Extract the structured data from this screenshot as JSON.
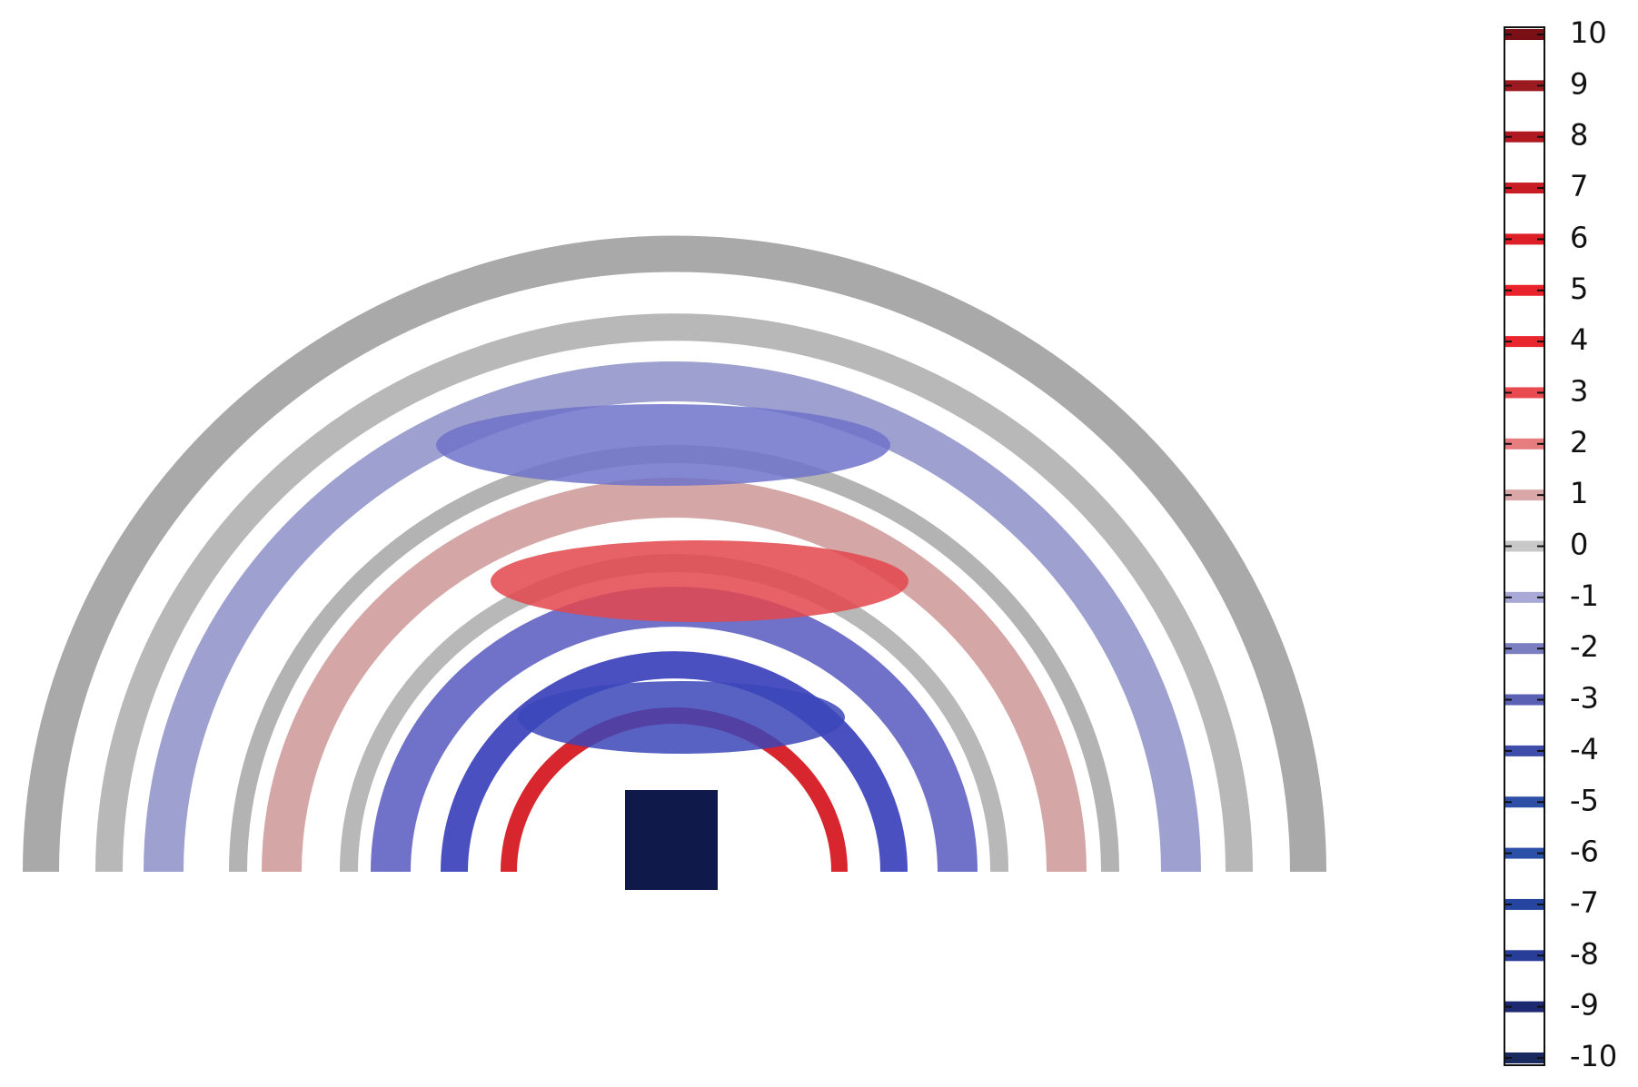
{
  "chart_data": {
    "type": "isosurface",
    "ylim": [
      -10,
      10
    ],
    "yticks": [
      10,
      9,
      8,
      7,
      6,
      5,
      4,
      3,
      2,
      1,
      0,
      -1,
      -2,
      -3,
      -4,
      -5,
      -6,
      -7,
      -8,
      -9,
      -10
    ],
    "level_colors": [
      "#7a0f16",
      "#9a1a20",
      "#b0191f",
      "#c81d25",
      "#dd1f28",
      "#e8232b",
      "#e8262d",
      "#e94a4f",
      "#e67c7e",
      "#d9a7a8",
      "#c8c8c8",
      "#a8a9d6",
      "#7b7fc2",
      "#5a60b4",
      "#3e4caa",
      "#2d4fa6",
      "#2b50a8",
      "#2645a0",
      "#273d98",
      "#1d2a72",
      "#1a2a5e"
    ]
  }
}
